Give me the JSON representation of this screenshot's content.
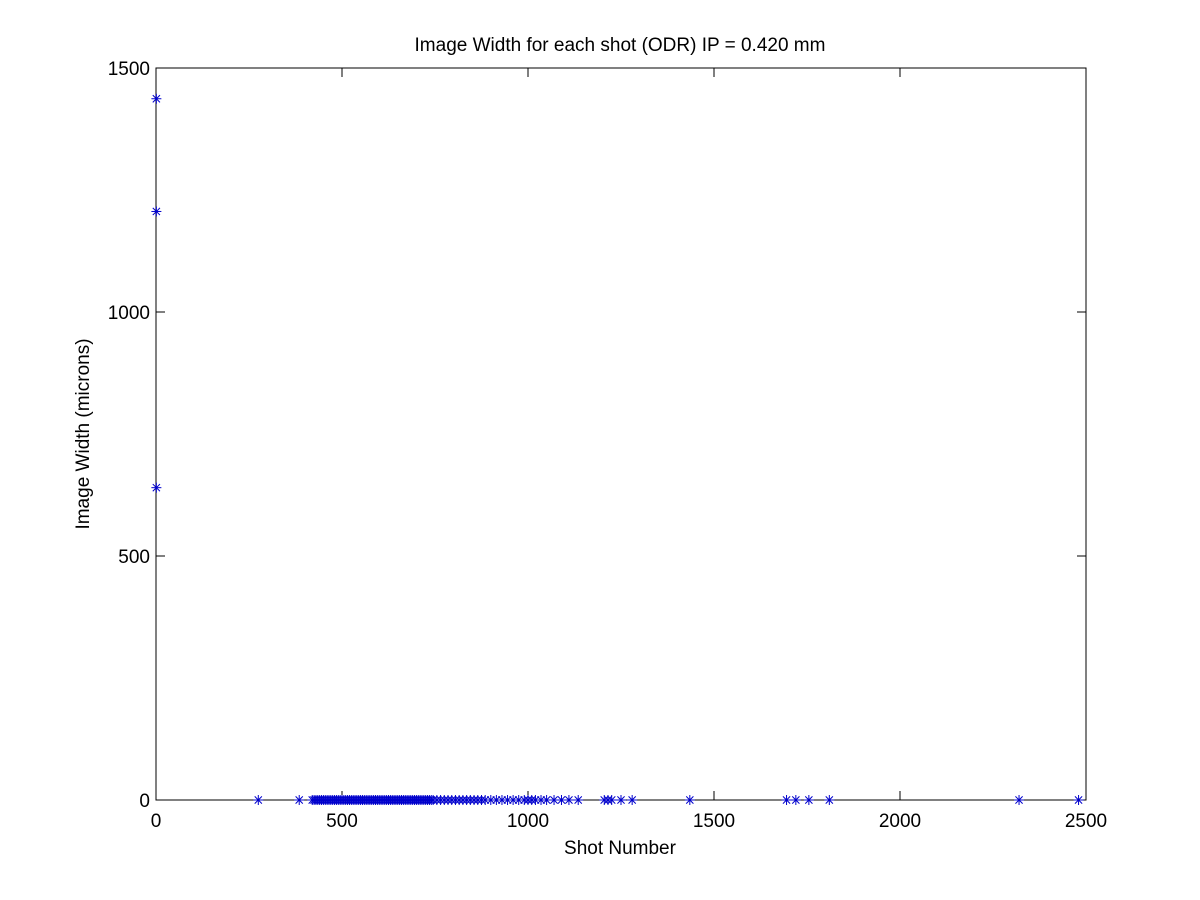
{
  "chart_data": {
    "type": "scatter",
    "title": "Image Width for each shot (ODR) IP = 0.420 mm",
    "xlabel": "Shot Number",
    "ylabel": "Image Width (microns)",
    "xlim": [
      0,
      2500
    ],
    "ylim": [
      0,
      1500
    ],
    "xticks": [
      0,
      500,
      1000,
      1500,
      2000,
      2500
    ],
    "yticks": [
      0,
      500,
      1000,
      1500
    ],
    "grid": false,
    "marker": "asterisk",
    "marker_color": "#0000cc",
    "series": [
      {
        "points": [
          [
            1,
            1437
          ],
          [
            1,
            1206
          ],
          [
            1,
            640
          ],
          [
            275,
            0
          ],
          [
            385,
            0
          ],
          [
            420,
            0
          ],
          [
            425,
            0
          ],
          [
            430,
            0
          ],
          [
            435,
            0
          ],
          [
            440,
            0
          ],
          [
            445,
            0
          ],
          [
            450,
            0
          ],
          [
            455,
            0
          ],
          [
            460,
            0
          ],
          [
            465,
            0
          ],
          [
            470,
            0
          ],
          [
            475,
            0
          ],
          [
            480,
            0
          ],
          [
            485,
            0
          ],
          [
            490,
            0
          ],
          [
            495,
            0
          ],
          [
            500,
            0
          ],
          [
            505,
            0
          ],
          [
            510,
            0
          ],
          [
            515,
            0
          ],
          [
            520,
            0
          ],
          [
            525,
            0
          ],
          [
            530,
            0
          ],
          [
            535,
            0
          ],
          [
            540,
            0
          ],
          [
            545,
            0
          ],
          [
            550,
            0
          ],
          [
            555,
            0
          ],
          [
            560,
            0
          ],
          [
            565,
            0
          ],
          [
            570,
            0
          ],
          [
            575,
            0
          ],
          [
            580,
            0
          ],
          [
            585,
            0
          ],
          [
            590,
            0
          ],
          [
            595,
            0
          ],
          [
            600,
            0
          ],
          [
            605,
            0
          ],
          [
            610,
            0
          ],
          [
            615,
            0
          ],
          [
            620,
            0
          ],
          [
            625,
            0
          ],
          [
            630,
            0
          ],
          [
            635,
            0
          ],
          [
            640,
            0
          ],
          [
            645,
            0
          ],
          [
            650,
            0
          ],
          [
            655,
            0
          ],
          [
            660,
            0
          ],
          [
            665,
            0
          ],
          [
            670,
            0
          ],
          [
            675,
            0
          ],
          [
            680,
            0
          ],
          [
            685,
            0
          ],
          [
            690,
            0
          ],
          [
            695,
            0
          ],
          [
            700,
            0
          ],
          [
            705,
            0
          ],
          [
            710,
            0
          ],
          [
            715,
            0
          ],
          [
            720,
            0
          ],
          [
            725,
            0
          ],
          [
            730,
            0
          ],
          [
            735,
            0
          ],
          [
            740,
            0
          ],
          [
            745,
            0
          ],
          [
            755,
            0
          ],
          [
            765,
            0
          ],
          [
            775,
            0
          ],
          [
            785,
            0
          ],
          [
            795,
            0
          ],
          [
            805,
            0
          ],
          [
            815,
            0
          ],
          [
            825,
            0
          ],
          [
            835,
            0
          ],
          [
            845,
            0
          ],
          [
            855,
            0
          ],
          [
            865,
            0
          ],
          [
            875,
            0
          ],
          [
            885,
            0
          ],
          [
            900,
            0
          ],
          [
            915,
            0
          ],
          [
            930,
            0
          ],
          [
            945,
            0
          ],
          [
            960,
            0
          ],
          [
            975,
            0
          ],
          [
            990,
            0
          ],
          [
            1000,
            0
          ],
          [
            1010,
            0
          ],
          [
            1020,
            0
          ],
          [
            1035,
            0
          ],
          [
            1050,
            0
          ],
          [
            1070,
            0
          ],
          [
            1090,
            0
          ],
          [
            1110,
            0
          ],
          [
            1135,
            0
          ],
          [
            1205,
            0
          ],
          [
            1215,
            0
          ],
          [
            1225,
            0
          ],
          [
            1250,
            0
          ],
          [
            1280,
            0
          ],
          [
            1435,
            0
          ],
          [
            1695,
            0
          ],
          [
            1720,
            0
          ],
          [
            1755,
            0
          ],
          [
            1810,
            0
          ],
          [
            2320,
            0
          ],
          [
            2480,
            0
          ]
        ]
      }
    ]
  }
}
